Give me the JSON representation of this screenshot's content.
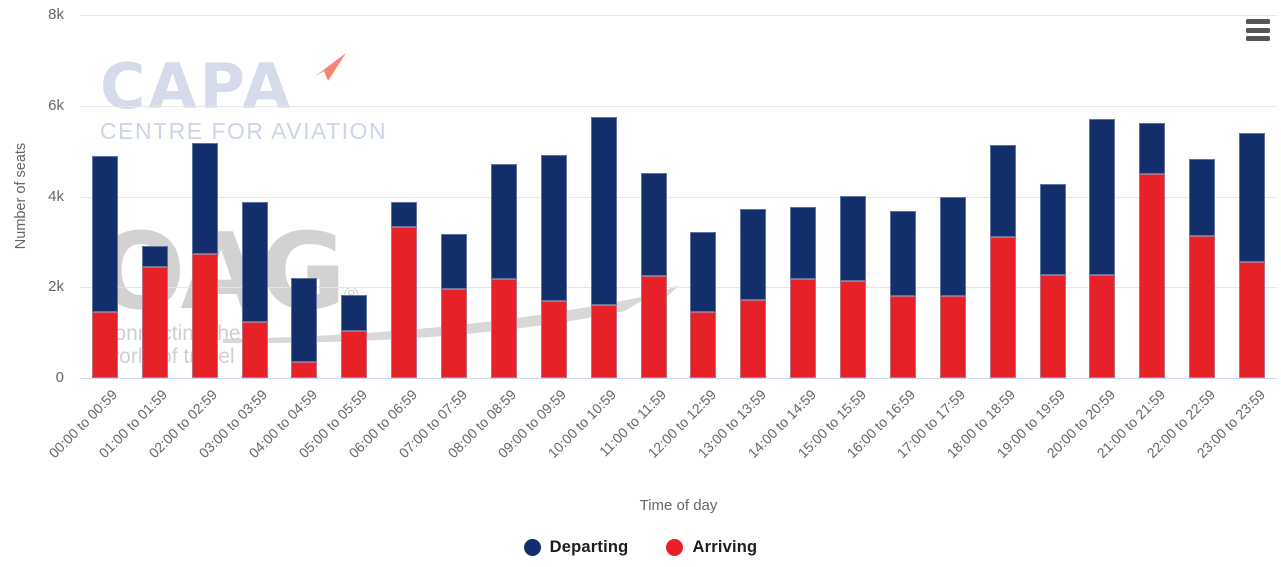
{
  "colors": {
    "departing": "#132f6b",
    "arriving": "#e62127",
    "gridline": "#e6e6e6",
    "axis_line": "#ccd6eb",
    "axis_text": "#666666",
    "legend_text": "#1d1d1d",
    "menu_icon": "#555555",
    "capa_watermark": "#d5dbea",
    "capa_arrow": "#f3705c",
    "oag_watermark": "#d2d2d2"
  },
  "watermarks": {
    "capa": {
      "title": "CAPA",
      "subtitle": "CENTRE FOR AVIATION"
    },
    "oag": {
      "title": "OAG",
      "reg": "®",
      "tagline_line1": "connecting the",
      "tagline_line2": "world of travel"
    }
  },
  "menu": {
    "icon": "hamburger-menu-icon"
  },
  "chart_data": {
    "type": "bar",
    "stacked": true,
    "title": "",
    "xlabel": "Time of day",
    "ylabel": "Number of seats",
    "ylim": [
      0,
      8000
    ],
    "grid": true,
    "legend_position": "bottom-center",
    "yticks": [
      {
        "value": 0,
        "label": "0"
      },
      {
        "value": 2000,
        "label": "2k"
      },
      {
        "value": 4000,
        "label": "4k"
      },
      {
        "value": 6000,
        "label": "6k"
      },
      {
        "value": 8000,
        "label": "8k"
      }
    ],
    "categories": [
      "00:00 to 00:59",
      "01:00 to 01:59",
      "02:00 to 02:59",
      "03:00 to 03:59",
      "04:00 to 04:59",
      "05:00 to 05:59",
      "06:00 to 06:59",
      "07:00 to 07:59",
      "08:00 to 08:59",
      "09:00 to 09:59",
      "10:00 to 10:59",
      "11:00 to 11:59",
      "12:00 to 12:59",
      "13:00 to 13:59",
      "14:00 to 14:59",
      "15:00 to 15:59",
      "16:00 to 16:59",
      "17:00 to 17:59",
      "18:00 to 18:59",
      "19:00 to 19:59",
      "20:00 to 20:59",
      "21:00 to 21:59",
      "22:00 to 22:59",
      "23:00 to 23:59"
    ],
    "series": [
      {
        "name": "Departing",
        "color": "#132f6b",
        "stack_order": "top",
        "values": [
          3440,
          450,
          2440,
          2650,
          1860,
          800,
          550,
          1210,
          2540,
          3230,
          4150,
          2280,
          1770,
          2010,
          1600,
          1890,
          1870,
          2200,
          2030,
          2010,
          3420,
          1120,
          1700,
          2840
        ]
      },
      {
        "name": "Arriving",
        "color": "#e62127",
        "stack_order": "bottom",
        "values": [
          1450,
          2450,
          2730,
          1230,
          350,
          1030,
          3330,
          1970,
          2180,
          1690,
          1600,
          2240,
          1450,
          1720,
          2180,
          2130,
          1800,
          1800,
          3100,
          2260,
          2280,
          4500,
          3130,
          2560
        ]
      }
    ]
  }
}
